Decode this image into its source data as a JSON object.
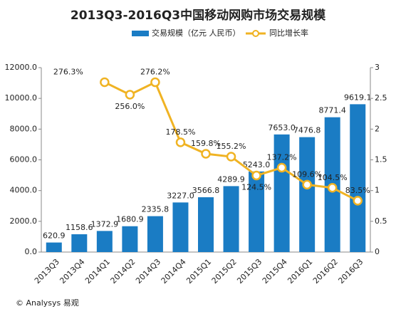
{
  "chart_data": {
    "type": "bar_line",
    "title": "2013Q3-2016Q3中国移动网购市场交易规模",
    "categories": [
      "2013Q3",
      "2013Q4",
      "2014Q1",
      "2014Q2",
      "2014Q3",
      "2014Q4",
      "2015Q1",
      "2015Q2",
      "2015Q3",
      "2015Q4",
      "2016Q1",
      "2016Q2",
      "2016Q3"
    ],
    "series": [
      {
        "name": "交易规模（亿元 人民币）",
        "color": "#1a7cc4",
        "type": "bar",
        "values": [
          620.9,
          1158.6,
          1372.9,
          1680.9,
          2335.8,
          3227.0,
          3566.8,
          4289.9,
          5243.0,
          7653.0,
          7476.8,
          8771.4,
          9619.1
        ],
        "value_labels": [
          "620.9",
          "1158.6",
          "1372.9",
          "1680.9",
          "2335.8",
          "3227.0",
          "3566.8",
          "4289.9",
          "5243.0",
          "7653.0",
          "7476.8",
          "8771.4",
          "9619.1"
        ]
      },
      {
        "name": "同比增长率",
        "color": "#f0b323",
        "type": "line",
        "axis": "y2",
        "values": [
          null,
          null,
          2.763,
          2.56,
          2.762,
          1.785,
          1.598,
          1.552,
          1.245,
          1.372,
          1.096,
          1.045,
          0.835
        ],
        "value_labels": [
          null,
          null,
          "276.3%",
          "256.0%",
          "276.2%",
          "178.5%",
          "159.8%",
          "155.2%",
          "124.5%",
          "137.2%",
          "109.6%",
          "104.5%",
          "83.5%"
        ]
      }
    ],
    "ylim": [
      0,
      12000
    ],
    "yticks": [
      {
        "value": 0,
        "label": "0.0"
      },
      {
        "value": 2000,
        "label": "2000.0"
      },
      {
        "value": 4000,
        "label": "4000.0"
      },
      {
        "value": 6000,
        "label": "6000.0"
      },
      {
        "value": 8000,
        "label": "8000.0"
      },
      {
        "value": 10000,
        "label": "10000.0"
      },
      {
        "value": 12000,
        "label": "12000.0"
      }
    ],
    "y2lim": [
      0,
      3
    ],
    "y2ticks": [
      0,
      0.5,
      1,
      1.5,
      2,
      2.5,
      3
    ],
    "legend": "top",
    "source": "© Analysys 易观"
  }
}
